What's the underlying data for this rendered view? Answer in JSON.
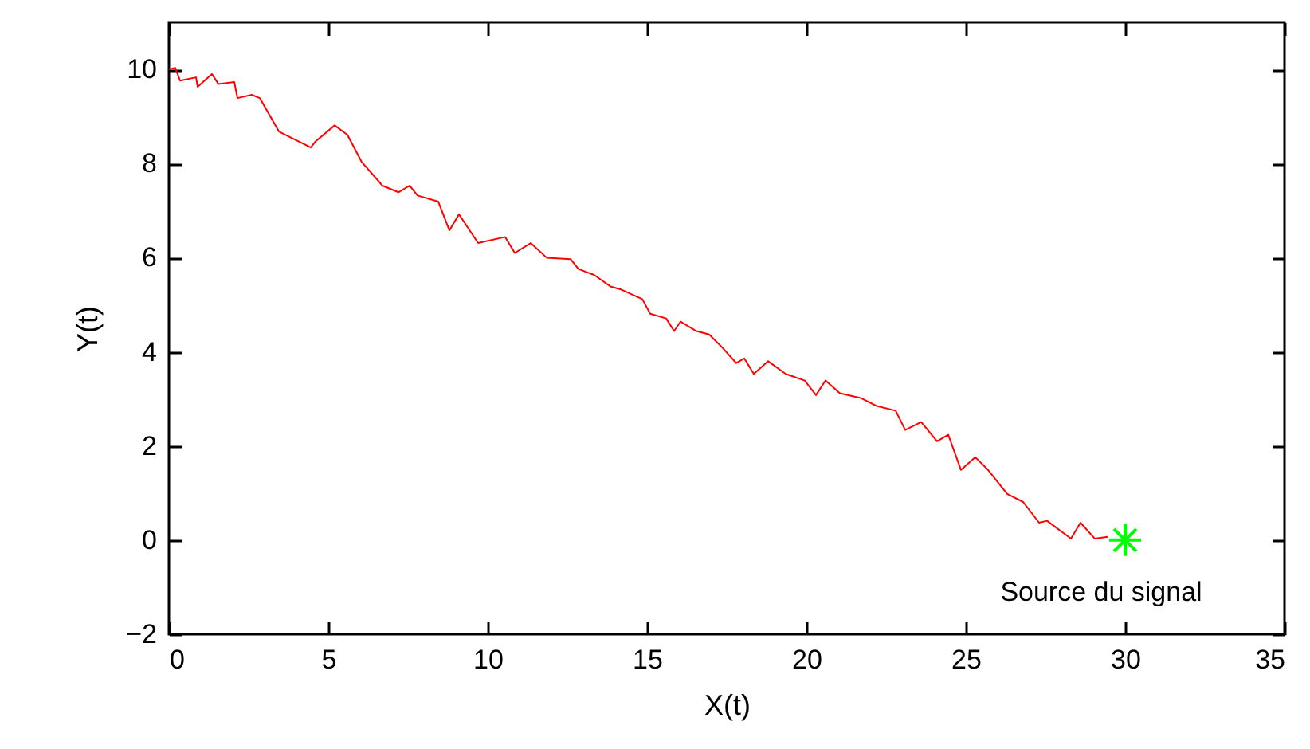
{
  "chart_data": {
    "type": "line",
    "xlabel": "X(t)",
    "ylabel": "Y(t)",
    "xlim": [
      0,
      35
    ],
    "ylim": [
      -2,
      11
    ],
    "xticks": [
      0,
      5,
      10,
      15,
      20,
      25,
      30,
      35
    ],
    "yticks": [
      {
        "value": -2,
        "label": "−2"
      },
      0,
      2,
      4,
      6,
      8,
      10
    ],
    "grid": false,
    "annotations": [
      {
        "text": "Source du signal",
        "x": 30,
        "y": 0
      }
    ],
    "series": [
      {
        "color": "#ff0000",
        "marker": "none",
        "line_style": "solid",
        "x": [
          0,
          0.2,
          0.35,
          0.85,
          0.9,
          1.35,
          1.55,
          2.05,
          2.15,
          2.6,
          2.85,
          3.45,
          4.45,
          4.6,
          5.2,
          5.6,
          6.05,
          6.7,
          7.2,
          7.55,
          7.8,
          8.45,
          8.8,
          9.1,
          9.7,
          10.55,
          10.85,
          11.35,
          11.85,
          12.6,
          12.85,
          13.35,
          13.85,
          14.2,
          14.85,
          15.1,
          15.6,
          15.85,
          16.05,
          16.55,
          16.95,
          17.35,
          17.8,
          18.05,
          18.35,
          18.8,
          19.35,
          19.95,
          20.3,
          20.6,
          21.05,
          21.7,
          22.2,
          22.8,
          23.1,
          23.6,
          24.1,
          24.45,
          24.85,
          25.3,
          25.7,
          26.3,
          26.8,
          27.3,
          27.55,
          28.3,
          28.6,
          29.05,
          29.45
        ],
        "values": [
          10,
          10.03,
          9.76,
          9.83,
          9.63,
          9.9,
          9.69,
          9.73,
          9.39,
          9.46,
          9.39,
          8.68,
          8.34,
          8.47,
          8.81,
          8.61,
          8.03,
          7.53,
          7.39,
          7.53,
          7.32,
          7.19,
          6.58,
          6.92,
          6.31,
          6.44,
          6.1,
          6.31,
          6,
          5.97,
          5.76,
          5.63,
          5.39,
          5.32,
          5.12,
          4.81,
          4.71,
          4.44,
          4.64,
          4.44,
          4.37,
          4.1,
          3.76,
          3.86,
          3.53,
          3.8,
          3.53,
          3.39,
          3.08,
          3.39,
          3.12,
          3.02,
          2.85,
          2.75,
          2.34,
          2.51,
          2.1,
          2.24,
          1.49,
          1.76,
          1.49,
          0.98,
          0.81,
          0.37,
          0.41,
          0.03,
          0.37,
          0.03,
          0.07
        ]
      },
      {
        "type": "scatter",
        "color": "#00ff00",
        "marker": "cross",
        "x": [
          30
        ],
        "values": [
          0
        ]
      }
    ]
  }
}
